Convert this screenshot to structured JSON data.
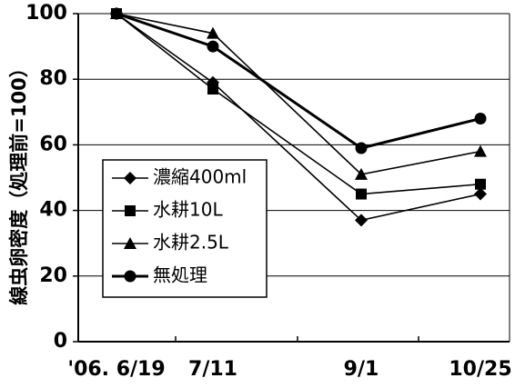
{
  "chart_data": {
    "type": "line",
    "title": "",
    "xlabel": "",
    "ylabel": "線虫卵密度（処理前=100）",
    "categories": [
      "'06. 6/19",
      "7/11",
      "9/1",
      "10/25"
    ],
    "ylim": [
      0,
      100
    ],
    "yticks": [
      "0",
      "20",
      "40",
      "60",
      "80",
      "100"
    ],
    "grid": true,
    "legend_position": "bottom-left",
    "series": [
      {
        "name": "濃縮400ml",
        "marker": "diamond",
        "values": [
          100,
          79,
          37,
          45
        ],
        "color": "#000000"
      },
      {
        "name": "水耕10L",
        "marker": "square",
        "values": [
          100,
          77,
          45,
          48
        ],
        "color": "#000000"
      },
      {
        "name": "水耕2.5L",
        "marker": "triangle",
        "values": [
          100,
          94,
          51,
          58
        ],
        "color": "#000000"
      },
      {
        "name": "無処理",
        "marker": "circle",
        "values": [
          100,
          90,
          59,
          68
        ],
        "color": "#000000"
      }
    ]
  }
}
